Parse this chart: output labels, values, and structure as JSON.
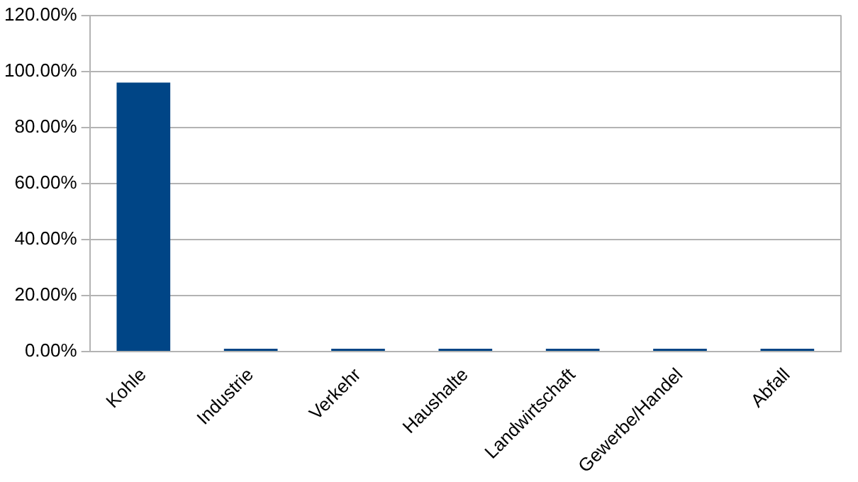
{
  "chart_data": {
    "type": "bar",
    "categories": [
      "Kohle",
      "Industrie",
      "Verkehr",
      "Haushalte",
      "Landwirtschaft",
      "Gewerbe/Handel",
      "Abfall"
    ],
    "values": [
      96,
      1,
      1,
      1,
      1,
      1,
      1
    ],
    "color": "#004586",
    "ylim": [
      0,
      120
    ],
    "yticks": [
      {
        "value": 0,
        "label": "0.00%"
      },
      {
        "value": 20,
        "label": "20.00%"
      },
      {
        "value": 40,
        "label": "40.00%"
      },
      {
        "value": 60,
        "label": "60.00%"
      },
      {
        "value": 80,
        "label": "80.00%"
      },
      {
        "value": 100,
        "label": "100.00%"
      },
      {
        "value": 120,
        "label": "120.00%"
      }
    ],
    "grid": "y",
    "legend": false
  }
}
